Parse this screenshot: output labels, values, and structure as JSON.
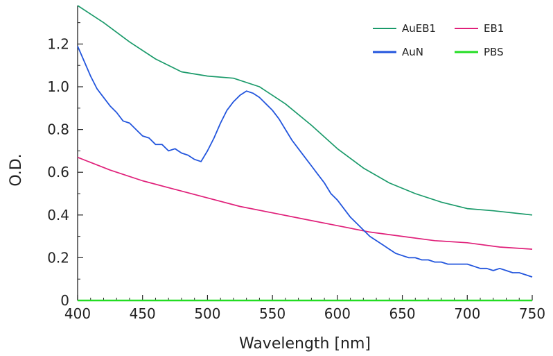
{
  "chart_data": {
    "type": "line",
    "title": "",
    "xlabel": "Wavelength [nm]",
    "ylabel": "O.D.",
    "xlim": [
      400,
      750
    ],
    "ylim": [
      0,
      1.38
    ],
    "x_ticks": [
      400,
      450,
      500,
      550,
      600,
      650,
      700,
      750
    ],
    "y_ticks": [
      0,
      0.2,
      0.4,
      0.6,
      0.8,
      1.0,
      1.2
    ],
    "x_tick_labels": [
      "400",
      "450",
      "500",
      "550",
      "600",
      "650",
      "700",
      "750"
    ],
    "y_tick_labels": [
      "0",
      "0.2",
      "0.4",
      "0.6",
      "0.8",
      "1.0",
      "1.2"
    ],
    "grid": false,
    "legend_position": "top-right",
    "series": [
      {
        "name": "AuEB1",
        "color": "#1a9a6a",
        "x": [
          400,
          420,
          440,
          460,
          480,
          500,
          520,
          540,
          560,
          580,
          600,
          620,
          640,
          660,
          680,
          700,
          720,
          750
        ],
        "y": [
          1.38,
          1.3,
          1.21,
          1.13,
          1.07,
          1.05,
          1.04,
          1.0,
          0.92,
          0.82,
          0.71,
          0.62,
          0.55,
          0.5,
          0.46,
          0.43,
          0.42,
          0.4
        ]
      },
      {
        "name": "EB1",
        "color": "#e0207a",
        "x": [
          400,
          425,
          450,
          475,
          500,
          525,
          550,
          575,
          600,
          625,
          650,
          675,
          700,
          725,
          750
        ],
        "y": [
          0.67,
          0.61,
          0.56,
          0.52,
          0.48,
          0.44,
          0.41,
          0.38,
          0.35,
          0.32,
          0.3,
          0.28,
          0.27,
          0.25,
          0.24
        ]
      },
      {
        "name": "AuN",
        "color": "#2255dd",
        "x": [
          400,
          405,
          410,
          415,
          420,
          425,
          430,
          435,
          440,
          445,
          450,
          455,
          460,
          465,
          470,
          475,
          480,
          485,
          490,
          495,
          500,
          505,
          510,
          515,
          520,
          525,
          530,
          535,
          540,
          545,
          550,
          555,
          560,
          565,
          570,
          575,
          580,
          585,
          590,
          595,
          600,
          605,
          610,
          615,
          620,
          625,
          630,
          635,
          640,
          645,
          650,
          655,
          660,
          665,
          670,
          675,
          680,
          685,
          690,
          695,
          700,
          705,
          710,
          715,
          720,
          725,
          730,
          735,
          740,
          745,
          750
        ],
        "y": [
          1.19,
          1.12,
          1.05,
          0.99,
          0.95,
          0.91,
          0.88,
          0.84,
          0.83,
          0.8,
          0.77,
          0.76,
          0.73,
          0.73,
          0.7,
          0.71,
          0.69,
          0.68,
          0.66,
          0.65,
          0.7,
          0.76,
          0.83,
          0.89,
          0.93,
          0.96,
          0.98,
          0.97,
          0.95,
          0.92,
          0.89,
          0.85,
          0.8,
          0.75,
          0.71,
          0.67,
          0.63,
          0.59,
          0.55,
          0.5,
          0.47,
          0.43,
          0.39,
          0.36,
          0.33,
          0.3,
          0.28,
          0.26,
          0.24,
          0.22,
          0.21,
          0.2,
          0.2,
          0.19,
          0.19,
          0.18,
          0.18,
          0.17,
          0.17,
          0.17,
          0.17,
          0.16,
          0.15,
          0.15,
          0.14,
          0.15,
          0.14,
          0.13,
          0.13,
          0.12,
          0.11
        ]
      },
      {
        "name": "PBS",
        "color": "#22dd22",
        "x": [
          400,
          750
        ],
        "y": [
          0.0,
          0.0
        ]
      }
    ]
  }
}
